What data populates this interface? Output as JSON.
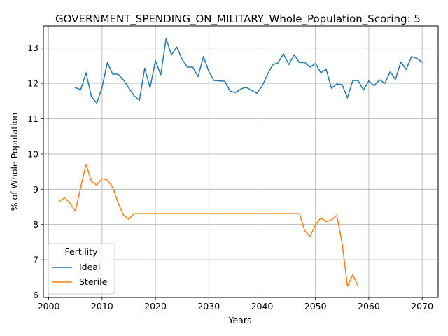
{
  "chart_data": {
    "type": "line",
    "title": "GOVERNMENT_SPENDING_ON_MILITARY_Whole_Population_Scoring: 5",
    "xlabel": "Years",
    "ylabel": "% of Whole Population",
    "xlim": [
      1999,
      2073
    ],
    "ylim": [
      5.93,
      13.63
    ],
    "xticks": [
      2000,
      2010,
      2020,
      2030,
      2040,
      2050,
      2060,
      2070
    ],
    "yticks": [
      6,
      7,
      8,
      9,
      10,
      11,
      12,
      13
    ],
    "grid": true,
    "legend": {
      "title": "Fertility",
      "placement": "lower-left"
    },
    "series": [
      {
        "name": "Ideal",
        "color": "#1f77b4",
        "x": [
          2005,
          2006,
          2007,
          2008,
          2009,
          2010,
          2011,
          2012,
          2013,
          2014,
          2015,
          2016,
          2017,
          2018,
          2019,
          2020,
          2021,
          2022,
          2023,
          2024,
          2025,
          2026,
          2027,
          2028,
          2029,
          2030,
          2031,
          2032,
          2033,
          2034,
          2035,
          2036,
          2037,
          2038,
          2039,
          2040,
          2041,
          2042,
          2043,
          2044,
          2045,
          2046,
          2047,
          2048,
          2049,
          2050,
          2051,
          2052,
          2053,
          2054,
          2055,
          2056,
          2057,
          2058,
          2059,
          2060,
          2061,
          2062,
          2063,
          2064,
          2065,
          2066,
          2067,
          2068,
          2069,
          2070
        ],
        "y": [
          11.88,
          11.82,
          12.3,
          11.63,
          11.44,
          11.88,
          12.59,
          12.26,
          12.26,
          12.1,
          11.87,
          11.65,
          11.52,
          12.43,
          11.87,
          12.64,
          12.24,
          13.27,
          12.81,
          13.03,
          12.68,
          12.46,
          12.46,
          12.19,
          12.76,
          12.34,
          12.08,
          12.07,
          12.06,
          11.78,
          11.74,
          11.84,
          11.89,
          11.8,
          11.72,
          11.92,
          12.25,
          12.53,
          12.58,
          12.84,
          12.53,
          12.81,
          12.59,
          12.59,
          12.46,
          12.56,
          12.3,
          12.4,
          11.86,
          11.98,
          11.96,
          11.59,
          12.08,
          12.08,
          11.81,
          12.07,
          11.93,
          12.1,
          12.0,
          12.33,
          12.11,
          12.61,
          12.39,
          12.76,
          12.71,
          12.6
        ]
      },
      {
        "name": "Sterile",
        "color": "#ff7f0e",
        "x": [
          2002,
          2003,
          2004,
          2005,
          2006,
          2007,
          2008,
          2009,
          2010,
          2011,
          2012,
          2013,
          2014,
          2015,
          2016,
          2017,
          2018,
          2019,
          2020,
          2021,
          2022,
          2023,
          2024,
          2025,
          2026,
          2027,
          2028,
          2029,
          2030,
          2031,
          2032,
          2033,
          2034,
          2035,
          2036,
          2037,
          2038,
          2039,
          2040,
          2041,
          2042,
          2043,
          2044,
          2045,
          2046,
          2047,
          2048,
          2049,
          2050,
          2051,
          2052,
          2053,
          2054,
          2055,
          2056,
          2057,
          2058
        ],
        "y": [
          8.66,
          8.76,
          8.6,
          8.38,
          9.06,
          9.71,
          9.22,
          9.12,
          9.3,
          9.26,
          9.05,
          8.62,
          8.27,
          8.15,
          8.31,
          8.31,
          8.31,
          8.31,
          8.31,
          8.31,
          8.31,
          8.31,
          8.31,
          8.31,
          8.31,
          8.31,
          8.31,
          8.31,
          8.31,
          8.31,
          8.31,
          8.31,
          8.31,
          8.31,
          8.31,
          8.31,
          8.31,
          8.31,
          8.31,
          8.31,
          8.31,
          8.31,
          8.31,
          8.31,
          8.31,
          8.31,
          7.82,
          7.66,
          7.99,
          8.19,
          8.08,
          8.13,
          8.26,
          7.47,
          6.25,
          6.57,
          6.25
        ]
      }
    ]
  }
}
